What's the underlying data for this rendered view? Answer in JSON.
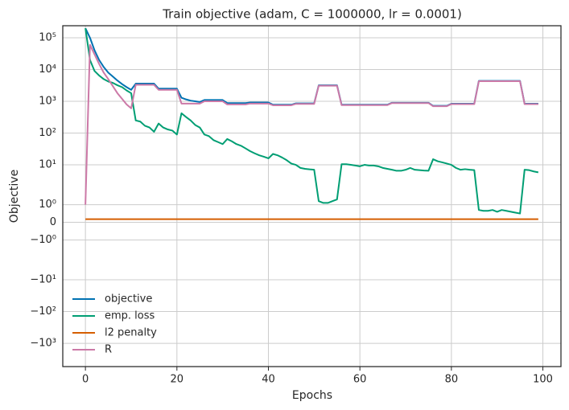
{
  "chart_data": {
    "type": "line",
    "title": "Train objective (adam, C = 1000000, lr = 0.0001)",
    "x_label": "Epochs",
    "y_label": "Objective",
    "yscale": "symlog",
    "grid": true,
    "legend": "lower left",
    "x": [
      0,
      1,
      2,
      3,
      4,
      5,
      6,
      7,
      8,
      9,
      10,
      11,
      12,
      13,
      14,
      15,
      16,
      17,
      18,
      19,
      20,
      21,
      22,
      23,
      24,
      25,
      26,
      27,
      28,
      29,
      30,
      31,
      32,
      33,
      34,
      35,
      36,
      37,
      38,
      39,
      40,
      41,
      42,
      43,
      44,
      45,
      46,
      47,
      48,
      49,
      50,
      51,
      52,
      53,
      54,
      55,
      56,
      57,
      58,
      59,
      60,
      61,
      62,
      63,
      64,
      65,
      66,
      67,
      68,
      69,
      70,
      71,
      72,
      73,
      74,
      75,
      76,
      77,
      78,
      79,
      80,
      81,
      82,
      83,
      84,
      85,
      86,
      87,
      88,
      89,
      90,
      91,
      92,
      93,
      94,
      95,
      96,
      97,
      98,
      99
    ],
    "xlim": [
      -4.95,
      103.95
    ],
    "xticks": [
      0,
      20,
      40,
      60,
      80,
      100
    ],
    "ylim": [
      -5400,
      240000
    ],
    "yticks": [
      {
        "value": -1000,
        "label": "−10³"
      },
      {
        "value": -100,
        "label": "−10²"
      },
      {
        "value": -10,
        "label": "−10¹"
      },
      {
        "value": -1,
        "label": "−10⁰"
      },
      0,
      {
        "value": 1,
        "label": "10⁰"
      },
      {
        "value": 10,
        "label": "10¹"
      },
      {
        "value": 100,
        "label": "10²"
      },
      {
        "value": 1000,
        "label": "10³"
      },
      {
        "value": 10000,
        "label": "10⁴"
      },
      {
        "value": 100000,
        "label": "10⁵"
      }
    ],
    "series": [
      {
        "name": "objective",
        "color": "#0072b2",
        "values": [
          200000,
          100000,
          40000,
          20000,
          12000,
          8000,
          6000,
          4500,
          3500,
          2800,
          2300,
          3600,
          3600,
          3600,
          3600,
          3600,
          2500,
          2500,
          2500,
          2500,
          2500,
          1300,
          1150,
          1050,
          1000,
          950,
          1100,
          1100,
          1100,
          1100,
          1100,
          880,
          880,
          880,
          880,
          880,
          920,
          920,
          920,
          920,
          920,
          780,
          780,
          780,
          780,
          780,
          860,
          860,
          860,
          860,
          860,
          3200,
          3200,
          3200,
          3200,
          3200,
          780,
          780,
          780,
          780,
          780,
          780,
          780,
          780,
          780,
          780,
          780,
          900,
          900,
          900,
          900,
          900,
          900,
          900,
          900,
          900,
          720,
          720,
          720,
          720,
          840,
          840,
          840,
          840,
          840,
          840,
          4400,
          4400,
          4400,
          4400,
          4400,
          4400,
          4400,
          4400,
          4400,
          4400,
          840,
          840,
          840,
          840
        ]
      },
      {
        "name": "emp. loss",
        "color": "#009e73",
        "values": [
          200000,
          20000,
          9000,
          6500,
          5000,
          4200,
          3800,
          3200,
          2800,
          2200,
          1800,
          250,
          230,
          170,
          150,
          110,
          200,
          150,
          130,
          120,
          90,
          420,
          320,
          250,
          180,
          150,
          90,
          80,
          60,
          52,
          45,
          65,
          55,
          45,
          40,
          33,
          27,
          23,
          20,
          18,
          16,
          22,
          20,
          17,
          14,
          11,
          10,
          8,
          7.5,
          7.2,
          7,
          1.2,
          1.1,
          1.1,
          1.2,
          1.3,
          10.5,
          10.5,
          10,
          9.5,
          9,
          10,
          9.5,
          9.5,
          9,
          8,
          7.5,
          7,
          6.5,
          6.5,
          7,
          8,
          7,
          6.8,
          6.6,
          6.5,
          15,
          13,
          12,
          11,
          10,
          8,
          7,
          7.3,
          7,
          6.8,
          0.7,
          0.65,
          0.65,
          0.7,
          0.6,
          0.7,
          0.65,
          0.6,
          0.55,
          0.5,
          7,
          6.8,
          6.2,
          5.8
        ]
      },
      {
        "name": "l2 penalty",
        "color": "#d55e00",
        "values": [
          0.18,
          0.18,
          0.18,
          0.18,
          0.18,
          0.18,
          0.18,
          0.18,
          0.18,
          0.18,
          0.18,
          0.18,
          0.18,
          0.18,
          0.18,
          0.18,
          0.18,
          0.18,
          0.18,
          0.18,
          0.18,
          0.18,
          0.18,
          0.18,
          0.18,
          0.18,
          0.18,
          0.18,
          0.18,
          0.18,
          0.18,
          0.18,
          0.18,
          0.18,
          0.18,
          0.18,
          0.18,
          0.18,
          0.18,
          0.18,
          0.18,
          0.18,
          0.18,
          0.18,
          0.18,
          0.18,
          0.18,
          0.18,
          0.18,
          0.18,
          0.18,
          0.18,
          0.18,
          0.18,
          0.18,
          0.18,
          0.18,
          0.18,
          0.18,
          0.18,
          0.18,
          0.18,
          0.18,
          0.18,
          0.18,
          0.18,
          0.18,
          0.18,
          0.18,
          0.18,
          0.18,
          0.18,
          0.18,
          0.18,
          0.18,
          0.18,
          0.18,
          0.18,
          0.18,
          0.18,
          0.18,
          0.18,
          0.18,
          0.18,
          0.18,
          0.18,
          0.18,
          0.18,
          0.18,
          0.18,
          0.18,
          0.18,
          0.18,
          0.18,
          0.18,
          0.18,
          0.18,
          0.18,
          0.18,
          0.18
        ]
      },
      {
        "name": "R",
        "color": "#cc79a7",
        "values": [
          1,
          60000,
          30000,
          15000,
          8000,
          5000,
          3000,
          1800,
          1200,
          800,
          600,
          3300,
          3300,
          3300,
          3300,
          3300,
          2300,
          2300,
          2300,
          2300,
          2300,
          850,
          850,
          850,
          850,
          850,
          1000,
          1000,
          1000,
          1000,
          1000,
          800,
          800,
          800,
          800,
          800,
          850,
          850,
          850,
          850,
          850,
          750,
          750,
          750,
          750,
          750,
          830,
          830,
          830,
          830,
          830,
          3100,
          3100,
          3100,
          3100,
          3100,
          760,
          760,
          760,
          760,
          760,
          760,
          760,
          760,
          760,
          760,
          760,
          880,
          880,
          880,
          880,
          880,
          880,
          880,
          880,
          880,
          700,
          700,
          700,
          700,
          820,
          820,
          820,
          820,
          820,
          820,
          4300,
          4300,
          4300,
          4300,
          4300,
          4300,
          4300,
          4300,
          4300,
          4300,
          820,
          820,
          820,
          820
        ]
      }
    ]
  }
}
